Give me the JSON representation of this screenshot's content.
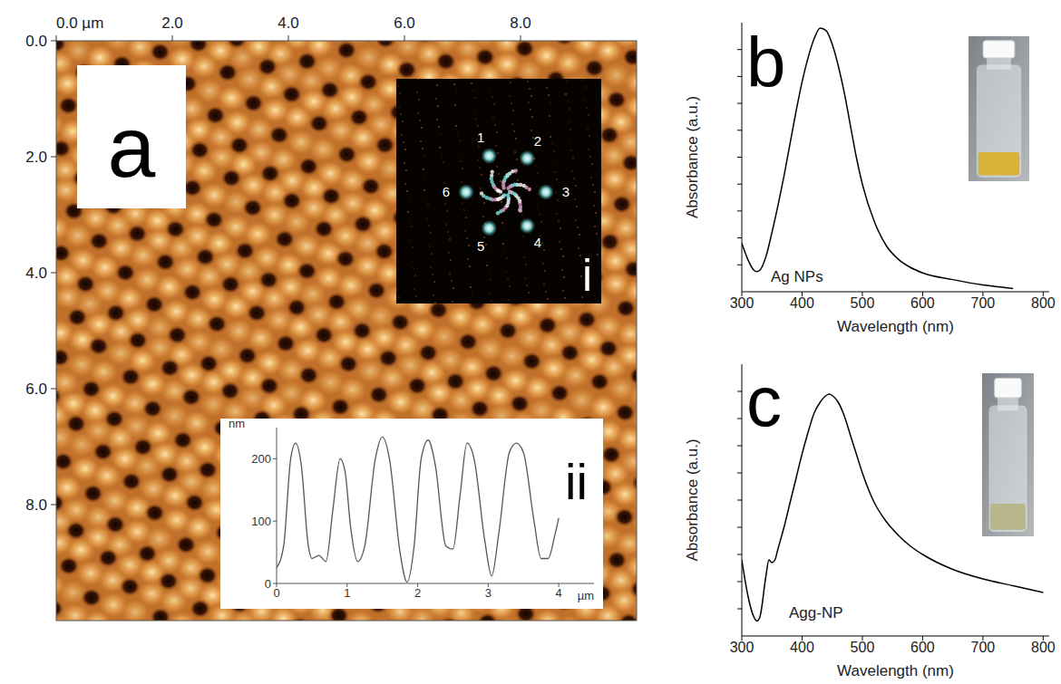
{
  "chart_data": [
    {
      "type": "image",
      "panel": "a",
      "xlim": [
        0,
        10
      ],
      "xticks": [
        {
          "value": 0,
          "label": "0.0 µm"
        },
        {
          "value": 2,
          "label": "2.0"
        },
        {
          "value": 4,
          "label": "4.0"
        },
        {
          "value": 6,
          "label": "6.0"
        },
        {
          "value": 8,
          "label": "8.0"
        }
      ],
      "ylim": [
        0,
        10
      ],
      "yticks": [
        {
          "value": 0,
          "label": "0.0"
        },
        {
          "value": 2,
          "label": "2.0"
        },
        {
          "value": 4,
          "label": "4.0"
        },
        {
          "value": 6,
          "label": "6.0"
        },
        {
          "value": 8,
          "label": "8.0"
        }
      ],
      "inset": {
        "type": "fft",
        "panel": "i",
        "annotations": [
          "1",
          "2",
          "3",
          "4",
          "5",
          "6"
        ]
      }
    },
    {
      "type": "line",
      "panel": "ii",
      "y_label": "nm",
      "x_label": "µm",
      "color": "#555555",
      "x": [
        0,
        0.1,
        0.2,
        0.27,
        0.35,
        0.45,
        0.5,
        0.6,
        0.7,
        0.8,
        0.9,
        0.97,
        1.05,
        1.15,
        1.25,
        1.4,
        1.5,
        1.6,
        1.75,
        1.85,
        1.95,
        2.05,
        2.15,
        2.25,
        2.4,
        2.5,
        2.6,
        2.7,
        2.8,
        2.95,
        3.05,
        3.15,
        3.3,
        3.4,
        3.5,
        3.65,
        3.75,
        3.85,
        3.95,
        4.0
      ],
      "values": [
        25,
        60,
        200,
        225,
        190,
        60,
        40,
        45,
        35,
        120,
        200,
        180,
        90,
        35,
        60,
        200,
        235,
        200,
        50,
        2,
        60,
        200,
        230,
        190,
        60,
        55,
        140,
        225,
        200,
        70,
        12,
        80,
        210,
        225,
        210,
        100,
        40,
        40,
        80,
        105
      ],
      "xlim": [
        0,
        4.5
      ],
      "xticks": [
        0,
        1,
        2,
        3,
        4
      ],
      "ylim": [
        0,
        250
      ],
      "yticks": [
        0,
        100,
        200
      ]
    },
    {
      "type": "line",
      "panel": "b",
      "title": "Ag NPs",
      "x_label": "Wavelength (nm)",
      "y_label": "Absorbance (a.u.)",
      "color": "#000000",
      "tick_labels": "x",
      "x": [
        300,
        310,
        320,
        325,
        330,
        340,
        350,
        360,
        370,
        380,
        390,
        400,
        410,
        420,
        430,
        440,
        450,
        460,
        470,
        480,
        490,
        500,
        520,
        540,
        560,
        580,
        600,
        650,
        700,
        750
      ],
      "values": [
        0.18,
        0.12,
        0.08,
        0.075,
        0.08,
        0.13,
        0.22,
        0.32,
        0.43,
        0.55,
        0.67,
        0.78,
        0.87,
        0.94,
        0.98,
        0.97,
        0.92,
        0.84,
        0.74,
        0.62,
        0.5,
        0.4,
        0.26,
        0.17,
        0.12,
        0.09,
        0.07,
        0.045,
        0.025,
        0.012
      ],
      "xlim": [
        300,
        810
      ],
      "xticks": [
        300,
        400,
        500,
        600,
        700,
        800
      ],
      "ylim": [
        0,
        1
      ],
      "yticks": [
        0.1,
        0.2,
        0.3,
        0.4,
        0.5,
        0.6,
        0.7,
        0.8,
        0.9
      ]
    },
    {
      "type": "line",
      "panel": "c",
      "title": "Agg-NP",
      "x_label": "Wavelength (nm)",
      "y_label": "Absorbance (a.u.)",
      "color": "#000000",
      "tick_labels": "x",
      "x": [
        300,
        310,
        320,
        325,
        330,
        340,
        345,
        350,
        355,
        360,
        370,
        380,
        390,
        400,
        410,
        420,
        430,
        440,
        445,
        450,
        460,
        470,
        480,
        490,
        500,
        520,
        540,
        560,
        580,
        600,
        650,
        700,
        750,
        800
      ],
      "values": [
        0.28,
        0.15,
        0.07,
        0.055,
        0.07,
        0.22,
        0.28,
        0.27,
        0.28,
        0.32,
        0.4,
        0.49,
        0.58,
        0.67,
        0.75,
        0.82,
        0.86,
        0.885,
        0.89,
        0.885,
        0.86,
        0.81,
        0.74,
        0.67,
        0.6,
        0.49,
        0.42,
        0.37,
        0.33,
        0.3,
        0.245,
        0.21,
        0.185,
        0.16
      ],
      "xlim": [
        300,
        810
      ],
      "xticks": [
        300,
        400,
        500,
        600,
        700,
        800
      ],
      "ylim": [
        0,
        1
      ],
      "yticks": [
        0.1,
        0.2,
        0.3,
        0.4,
        0.5,
        0.6,
        0.7,
        0.8,
        0.9
      ]
    }
  ]
}
